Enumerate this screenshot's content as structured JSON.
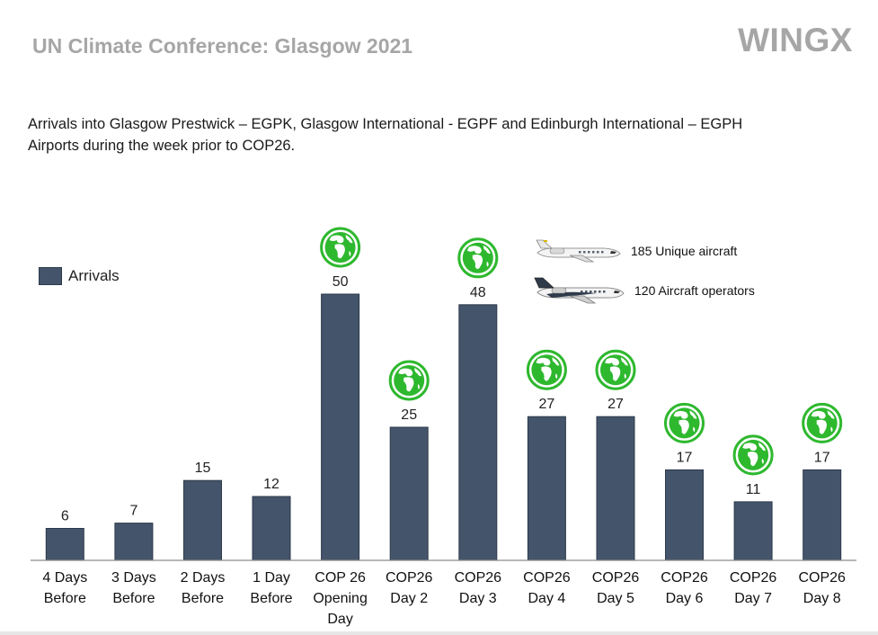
{
  "header": {
    "title": "UN Climate Conference: Glasgow 2021",
    "logo": "WINGX"
  },
  "subtitle_lines": [
    "Arrivals into Glasgow Prestwick – EGPK, Glasgow International - EGPF and Edinburgh International – EGPH",
    "Airports during the week prior to COP26."
  ],
  "stats": {
    "unique_aircraft": "185 Unique aircraft",
    "aircraft_operators": "120 Aircraft operators"
  },
  "icons": {
    "globe": "globe-icon",
    "plane": "business-jet-icon"
  },
  "colors": {
    "bar": "#44546a",
    "globe": "#2eb82e",
    "title": "#a6a6a6"
  },
  "chart_data": {
    "type": "bar",
    "categories": [
      [
        "4 Days",
        "Before"
      ],
      [
        "3 Days",
        "Before"
      ],
      [
        "2 Days",
        "Before"
      ],
      [
        "1 Day",
        "Before"
      ],
      [
        "COP 26",
        "Opening",
        "Day"
      ],
      [
        "COP26",
        "Day 2"
      ],
      [
        "COP26",
        "Day 3"
      ],
      [
        "COP26",
        "Day 4"
      ],
      [
        "COP26",
        "Day 5"
      ],
      [
        "COP26",
        "Day 6"
      ],
      [
        "COP26",
        "Day 7"
      ],
      [
        "COP26",
        "Day 8"
      ]
    ],
    "series": [
      {
        "name": "Arrivals",
        "values": [
          6,
          7,
          15,
          12,
          50,
          25,
          48,
          27,
          27,
          17,
          11,
          17
        ]
      }
    ],
    "cop_days": [
      false,
      false,
      false,
      false,
      true,
      true,
      true,
      true,
      true,
      true,
      true,
      true
    ],
    "ylim": [
      0,
      50
    ],
    "data_labels": true,
    "grid": false,
    "legend": "top-left",
    "xlabel": "",
    "ylabel": ""
  }
}
